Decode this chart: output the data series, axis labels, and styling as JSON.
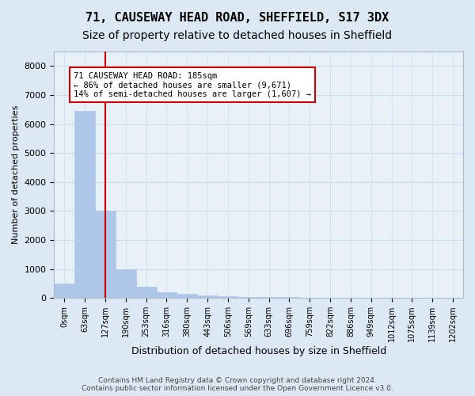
{
  "title": "71, CAUSEWAY HEAD ROAD, SHEFFIELD, S17 3DX",
  "subtitle": "Size of property relative to detached houses in Sheffield",
  "xlabel": "Distribution of detached houses by size in Sheffield",
  "ylabel": "Number of detached properties",
  "bar_values": [
    500,
    6450,
    3000,
    1000,
    400,
    200,
    130,
    80,
    50,
    35,
    25,
    20,
    15,
    12,
    10,
    8,
    6,
    5,
    4,
    3
  ],
  "bar_labels": [
    "0sqm",
    "63sqm",
    "127sqm",
    "190sqm",
    "253sqm",
    "316sqm",
    "380sqm",
    "443sqm",
    "506sqm",
    "569sqm",
    "633sqm",
    "696sqm",
    "759sqm",
    "822sqm",
    "886sqm",
    "949sqm",
    "1012sqm",
    "1075sqm",
    "1139sqm",
    "1202sqm"
  ],
  "bar_color": "#aec6e8",
  "bar_edge_color": "#aec6e8",
  "vline_x": 2.0,
  "vline_color": "#cc0000",
  "annotation_text": "71 CAUSEWAY HEAD ROAD: 185sqm\n← 86% of detached houses are smaller (9,671)\n14% of semi-detached houses are larger (1,607) →",
  "annotation_box_color": "white",
  "annotation_box_edgecolor": "#cc0000",
  "ylim": [
    0,
    8500
  ],
  "yticks": [
    0,
    1000,
    2000,
    3000,
    4000,
    5000,
    6000,
    7000,
    8000
  ],
  "grid_color": "#ccddee",
  "background_color": "#dce9f5",
  "plot_bg_color": "#e8f0f8",
  "footer": "Contains HM Land Registry data © Crown copyright and database right 2024.\nContains public sector information licensed under the Open Government Licence v3.0.",
  "title_fontsize": 11,
  "subtitle_fontsize": 10
}
